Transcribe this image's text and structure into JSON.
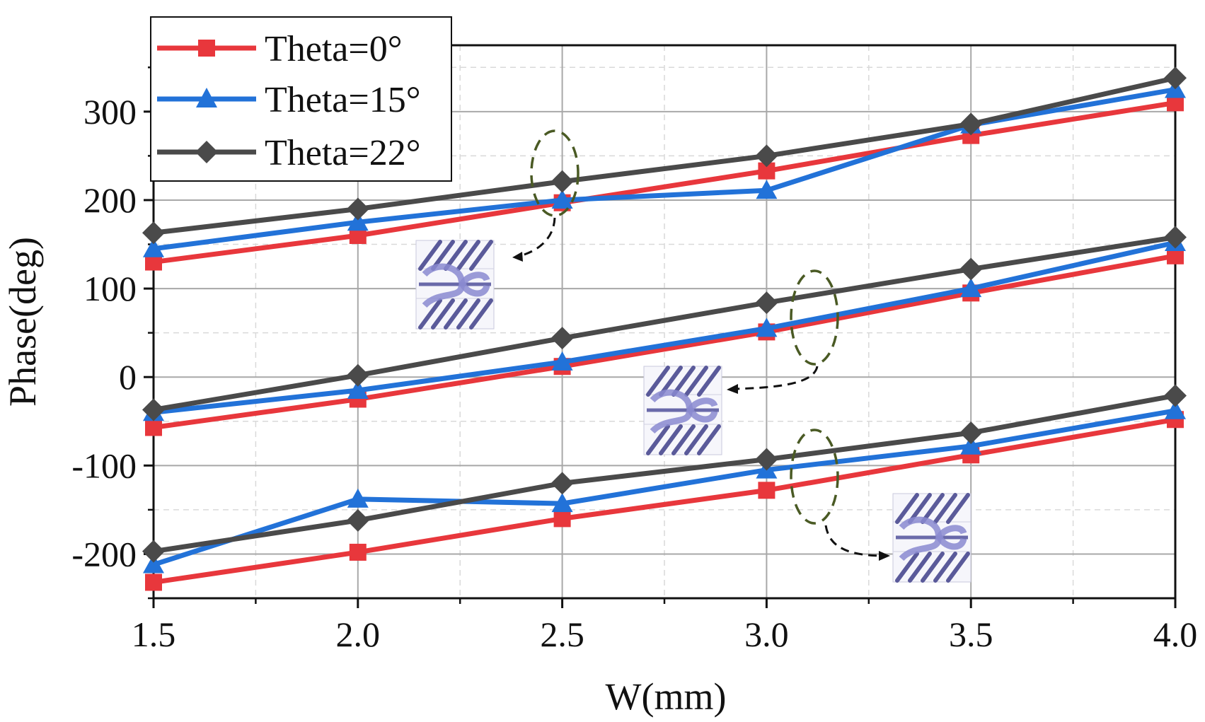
{
  "chart_data": {
    "type": "line",
    "title": "",
    "xlabel": "W(mm)",
    "ylabel": "Phase(deg)",
    "xlim": [
      1.5,
      4.0
    ],
    "ylim": [
      -250,
      375
    ],
    "x": [
      1.5,
      2.0,
      2.5,
      3.0,
      3.5,
      4.0
    ],
    "x_ticks": [
      "1.5",
      "2.0",
      "2.5",
      "3.0",
      "3.5",
      "4.0"
    ],
    "y_ticks": [
      "-200",
      "-100",
      "0",
      "100",
      "200",
      "300"
    ],
    "grid": true,
    "legend_position": "top-left",
    "series": [
      {
        "name": "Theta=0°",
        "color": "#e8373c",
        "marker": "square",
        "branches": [
          [
            130,
            160,
            197,
            233,
            273,
            310
          ],
          [
            -57,
            -25,
            12,
            51,
            95,
            137
          ],
          [
            -232,
            -198,
            -160,
            -128,
            -88,
            -48
          ]
        ]
      },
      {
        "name": "Theta=15°",
        "color": "#2272d8",
        "marker": "triangle",
        "branches": [
          [
            145,
            175,
            200,
            211,
            285,
            325
          ],
          [
            -40,
            -15,
            17,
            55,
            100,
            152
          ],
          [
            -212,
            -138,
            -143,
            -105,
            -78,
            -38
          ]
        ]
      },
      {
        "name": "Theta=22°",
        "color": "#4a4a4a",
        "marker": "diamond",
        "branches": [
          [
            163,
            190,
            221,
            250,
            286,
            338
          ],
          [
            -37,
            2,
            44,
            84,
            122,
            158
          ],
          [
            -197,
            -162,
            -120,
            -93,
            -63,
            -21
          ]
        ]
      }
    ],
    "annotations": [
      {
        "type": "ellipse",
        "name": "upper-branch-highlight",
        "target_x": 2.6,
        "target_y": 210
      },
      {
        "type": "ellipse",
        "name": "middle-branch-highlight",
        "target_x": 3.12,
        "target_y": 70
      },
      {
        "type": "ellipse",
        "name": "lower-branch-highlight",
        "target_x": 3.12,
        "target_y": -105
      }
    ],
    "insets": [
      "unit-cell-inset-1",
      "unit-cell-inset-2",
      "unit-cell-inset-3"
    ]
  }
}
